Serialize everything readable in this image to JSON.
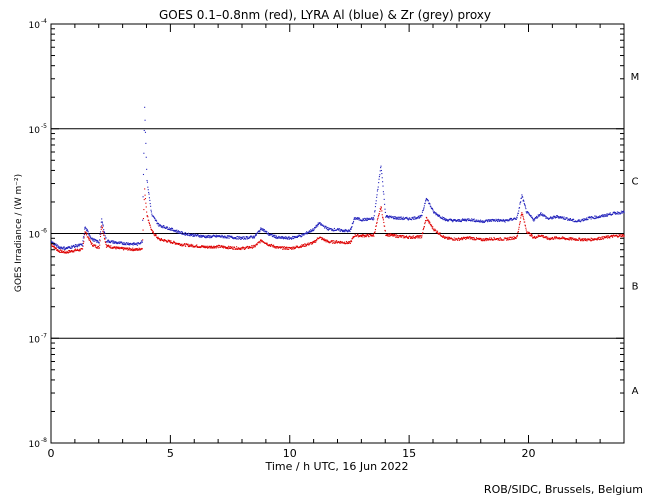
{
  "chart_data": {
    "type": "scatter",
    "title": "GOES 0.1–0.8nm (red), LYRA Al (blue) & Zr (grey) proxy",
    "xlabel": "Time / h UTC, 16 Jun 2022",
    "ylabel": "GOES Irradiance / (W m⁻²)",
    "credit": "ROB/SIDC, Brussels, Belgium",
    "xlim": [
      0,
      24
    ],
    "ylim": [
      1e-08,
      0.0001
    ],
    "yscale": "log",
    "x_ticks": [
      {
        "value": 0,
        "label": "0"
      },
      {
        "value": 5,
        "label": "5"
      },
      {
        "value": 10,
        "label": "10"
      },
      {
        "value": 15,
        "label": "15"
      },
      {
        "value": 20,
        "label": "20"
      }
    ],
    "y_ticks": [
      {
        "value": 1e-08,
        "base": "10",
        "exp": "-8"
      },
      {
        "value": 1e-07,
        "base": "10",
        "exp": "-7"
      },
      {
        "value": 1e-06,
        "base": "10",
        "exp": "-6"
      },
      {
        "value": 1e-05,
        "base": "10",
        "exp": "-5"
      },
      {
        "value": 0.0001,
        "base": "10",
        "exp": "-4"
      }
    ],
    "class_lines": [
      1e-07,
      1e-06,
      1e-05
    ],
    "flare_classes": [
      {
        "label": "A",
        "value": 3.2e-08
      },
      {
        "label": "B",
        "value": 3.2e-07
      },
      {
        "label": "C",
        "value": 3.2e-06
      },
      {
        "label": "M",
        "value": 3.2e-05
      }
    ],
    "series": [
      {
        "name": "GOES 0.1–0.8nm",
        "color": "#dd0000",
        "points": [
          [
            0.0,
            7.8e-07
          ],
          [
            0.3,
            6.8e-07
          ],
          [
            0.6,
            6.6e-07
          ],
          [
            1.0,
            6.9e-07
          ],
          [
            1.3,
            7e-07
          ],
          [
            1.4,
            1.05e-06
          ],
          [
            1.7,
            7.8e-07
          ],
          [
            2.0,
            7.3e-07
          ],
          [
            2.1,
            1.2e-06
          ],
          [
            2.3,
            7.6e-07
          ],
          [
            2.8,
            7.2e-07
          ],
          [
            3.2,
            7.1e-07
          ],
          [
            3.6,
            7e-07
          ],
          [
            3.8,
            7.2e-07
          ],
          [
            3.9,
            2.6e-06
          ],
          [
            4.0,
            1.5e-06
          ],
          [
            4.2,
            1.05e-06
          ],
          [
            4.5,
            8.8e-07
          ],
          [
            5.0,
            8.3e-07
          ],
          [
            5.5,
            7.8e-07
          ],
          [
            6.0,
            7.6e-07
          ],
          [
            6.5,
            7.4e-07
          ],
          [
            7.0,
            7.5e-07
          ],
          [
            7.5,
            7.3e-07
          ],
          [
            8.0,
            7.2e-07
          ],
          [
            8.5,
            7.5e-07
          ],
          [
            8.8,
            8.6e-07
          ],
          [
            9.1,
            7.8e-07
          ],
          [
            9.5,
            7.3e-07
          ],
          [
            10.0,
            7.2e-07
          ],
          [
            10.5,
            7.6e-07
          ],
          [
            11.0,
            8.2e-07
          ],
          [
            11.2,
            9.2e-07
          ],
          [
            11.6,
            8.3e-07
          ],
          [
            12.0,
            8.3e-07
          ],
          [
            12.5,
            8.1e-07
          ],
          [
            12.7,
            9.6e-07
          ],
          [
            13.0,
            9.5e-07
          ],
          [
            13.5,
            9.6e-07
          ],
          [
            13.8,
            1.8e-06
          ],
          [
            14.0,
            9.8e-07
          ],
          [
            14.5,
            9.4e-07
          ],
          [
            15.0,
            9.2e-07
          ],
          [
            15.5,
            9.3e-07
          ],
          [
            15.7,
            1.4e-06
          ],
          [
            16.0,
            1.1e-06
          ],
          [
            16.5,
            9e-07
          ],
          [
            17.0,
            8.8e-07
          ],
          [
            17.5,
            9.1e-07
          ],
          [
            18.0,
            8.7e-07
          ],
          [
            18.5,
            8.9e-07
          ],
          [
            19.0,
            8.8e-07
          ],
          [
            19.5,
            9.2e-07
          ],
          [
            19.7,
            1.6e-06
          ],
          [
            19.9,
            1.05e-06
          ],
          [
            20.2,
            9.1e-07
          ],
          [
            20.5,
            9.6e-07
          ],
          [
            20.8,
            8.9e-07
          ],
          [
            21.2,
            9.1e-07
          ],
          [
            21.6,
            8.9e-07
          ],
          [
            22.0,
            8.8e-07
          ],
          [
            22.5,
            8.7e-07
          ],
          [
            23.0,
            9e-07
          ],
          [
            23.5,
            9.4e-07
          ],
          [
            24.0,
            9.6e-07
          ]
        ]
      },
      {
        "name": "LYRA Al",
        "color": "#2222bb",
        "points": [
          [
            0.0,
            8.3e-07
          ],
          [
            0.3,
            7.4e-07
          ],
          [
            0.6,
            7.2e-07
          ],
          [
            1.0,
            7.6e-07
          ],
          [
            1.3,
            7.8e-07
          ],
          [
            1.4,
            1.15e-06
          ],
          [
            1.7,
            8.8e-07
          ],
          [
            2.0,
            8.2e-07
          ],
          [
            2.1,
            1.35e-06
          ],
          [
            2.3,
            8.5e-07
          ],
          [
            2.8,
            8.1e-07
          ],
          [
            3.2,
            8e-07
          ],
          [
            3.6,
            7.9e-07
          ],
          [
            3.8,
            8.4e-07
          ],
          [
            3.9,
            1.6e-05
          ],
          [
            4.0,
            3.2e-06
          ],
          [
            4.2,
            1.5e-06
          ],
          [
            4.5,
            1.2e-06
          ],
          [
            5.0,
            1.1e-06
          ],
          [
            5.5,
            1e-06
          ],
          [
            6.0,
            9.6e-07
          ],
          [
            6.5,
            9.3e-07
          ],
          [
            7.0,
            9.4e-07
          ],
          [
            7.5,
            9.2e-07
          ],
          [
            8.0,
            9e-07
          ],
          [
            8.5,
            9.3e-07
          ],
          [
            8.8,
            1.12e-06
          ],
          [
            9.1,
            9.8e-07
          ],
          [
            9.5,
            9.1e-07
          ],
          [
            10.0,
            9e-07
          ],
          [
            10.5,
            9.6e-07
          ],
          [
            11.0,
            1.1e-06
          ],
          [
            11.2,
            1.25e-06
          ],
          [
            11.6,
            1.1e-06
          ],
          [
            12.0,
            1.08e-06
          ],
          [
            12.5,
            1.05e-06
          ],
          [
            12.7,
            1.4e-06
          ],
          [
            13.0,
            1.35e-06
          ],
          [
            13.5,
            1.38e-06
          ],
          [
            13.8,
            4.5e-06
          ],
          [
            14.0,
            1.45e-06
          ],
          [
            14.5,
            1.4e-06
          ],
          [
            15.0,
            1.38e-06
          ],
          [
            15.5,
            1.45e-06
          ],
          [
            15.7,
            2.2e-06
          ],
          [
            16.0,
            1.6e-06
          ],
          [
            16.5,
            1.35e-06
          ],
          [
            17.0,
            1.32e-06
          ],
          [
            17.5,
            1.36e-06
          ],
          [
            18.0,
            1.3e-06
          ],
          [
            18.5,
            1.34e-06
          ],
          [
            19.0,
            1.32e-06
          ],
          [
            19.5,
            1.4e-06
          ],
          [
            19.7,
            2.3e-06
          ],
          [
            19.9,
            1.6e-06
          ],
          [
            20.2,
            1.35e-06
          ],
          [
            20.5,
            1.55e-06
          ],
          [
            20.8,
            1.38e-06
          ],
          [
            21.2,
            1.45e-06
          ],
          [
            21.6,
            1.38e-06
          ],
          [
            22.0,
            1.3e-06
          ],
          [
            22.5,
            1.4e-06
          ],
          [
            23.0,
            1.45e-06
          ],
          [
            23.5,
            1.55e-06
          ],
          [
            24.0,
            1.6e-06
          ]
        ]
      }
    ],
    "grid": false
  }
}
